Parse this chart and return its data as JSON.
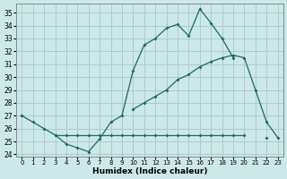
{
  "background_color": "#cce8e8",
  "grid_color": "#aacccc",
  "line_color": "#1a6b60",
  "xlabel": "Humidex (Indice chaleur)",
  "xlim": [
    -0.5,
    23.5
  ],
  "ylim": [
    23.8,
    35.7
  ],
  "yticks": [
    24,
    25,
    26,
    27,
    28,
    29,
    30,
    31,
    32,
    33,
    34,
    35
  ],
  "xticks": [
    0,
    1,
    2,
    3,
    4,
    5,
    6,
    7,
    8,
    9,
    10,
    11,
    12,
    13,
    14,
    15,
    16,
    17,
    18,
    19,
    20,
    21,
    22,
    23
  ],
  "line1_y": [
    27.0,
    26.5,
    26.0,
    25.5,
    24.8,
    24.5,
    24.2,
    25.2,
    26.5,
    27.0,
    30.5,
    32.5,
    33.0,
    33.8,
    34.1,
    33.2,
    35.3,
    34.2,
    33.0,
    31.5,
    null,
    null,
    null,
    null
  ],
  "line2_y": [
    null,
    null,
    null,
    25.5,
    25.5,
    25.5,
    25.5,
    25.5,
    25.5,
    25.5,
    25.5,
    25.5,
    25.5,
    25.5,
    25.5,
    25.5,
    25.5,
    25.5,
    25.5,
    25.5,
    25.5,
    null,
    25.3,
    null
  ],
  "line3_y": [
    27.0,
    null,
    null,
    null,
    null,
    null,
    null,
    null,
    null,
    null,
    27.5,
    28.0,
    28.5,
    29.0,
    29.8,
    30.2,
    30.8,
    31.2,
    31.5,
    31.7,
    31.5,
    29.0,
    26.5,
    25.3
  ]
}
